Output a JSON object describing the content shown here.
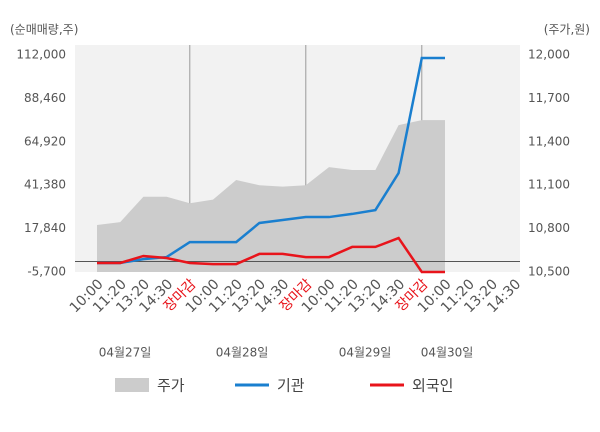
{
  "chart_data": {
    "type": "line",
    "y_label": "(순매매량,주)",
    "y2_label": "(주가,원)",
    "categories": [
      "10:00",
      "11:20",
      "13:20",
      "14:30",
      "장마감",
      "10:00",
      "11:20",
      "13:20",
      "14:30",
      "장마감",
      "10:00",
      "11:20",
      "13:20",
      "14:30",
      "장마감",
      "10:00",
      "11:20",
      "13:20",
      "14:30"
    ],
    "highlight": {
      "indices": [
        4,
        9,
        14
      ],
      "color": "#e8141b"
    },
    "day_labels": [
      "04월27일",
      "04월28일",
      "04월29일",
      "04월30일"
    ],
    "series": [
      {
        "name": "주가",
        "color": "#cccccc",
        "axis": "y2",
        "kind": "area",
        "values": [
          10825,
          10845,
          11020,
          11020,
          10975,
          11000,
          11136,
          11100,
          11090,
          11100,
          11225,
          11205,
          11205,
          11515,
          11550,
          11550,
          null,
          null,
          null
        ]
      },
      {
        "name": "기관",
        "color": "#1a7fcf",
        "values": [
          -800,
          -800,
          1300,
          2400,
          10500,
          10500,
          10500,
          20900,
          22500,
          24100,
          24100,
          25800,
          27900,
          48000,
          110400,
          110400,
          null,
          null,
          null
        ]
      },
      {
        "name": "외국인",
        "color": "#e8141b",
        "values": [
          -800,
          -800,
          3000,
          1900,
          -800,
          -1400,
          -1400,
          4100,
          4100,
          2400,
          2400,
          7900,
          7900,
          12700,
          -5700,
          -5700,
          null,
          null,
          null
        ]
      }
    ],
    "ylim": [
      -5700,
      112000
    ],
    "yticks": [
      {
        "value": -5700,
        "label": "-5,700"
      },
      {
        "value": 17840,
        "label": "17,840"
      },
      {
        "value": 41380,
        "label": "41,380"
      },
      {
        "value": 64920,
        "label": "64,920"
      },
      {
        "value": 88460,
        "label": "88,460"
      },
      {
        "value": 112000,
        "label": "112,000"
      }
    ],
    "y2lim": [
      10500,
      12000
    ],
    "y2ticks": [
      {
        "value": 10500,
        "label": "10,500"
      },
      {
        "value": 10800,
        "label": "10,800"
      },
      {
        "value": 11100,
        "label": "11,100"
      },
      {
        "value": 11400,
        "label": "11,400"
      },
      {
        "value": 11700,
        "label": "11,700"
      },
      {
        "value": 12000,
        "label": "12,000"
      }
    ]
  }
}
